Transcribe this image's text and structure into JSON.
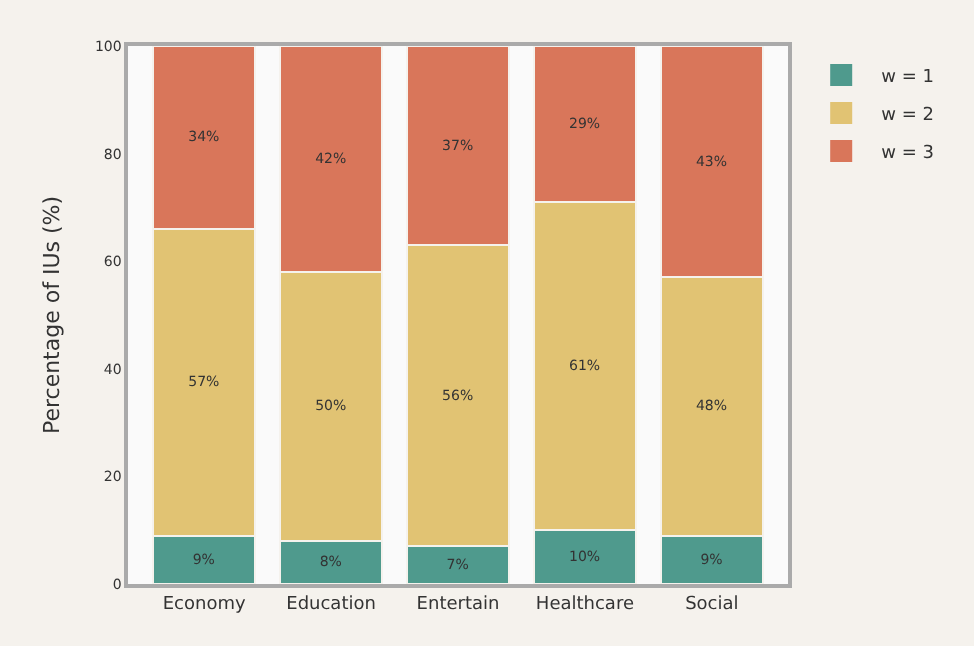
{
  "chart_data": {
    "type": "bar",
    "stacked": true,
    "ylabel": "Percentage of IUs (%)",
    "categories": [
      "Economy",
      "Education",
      "Entertain",
      "Healthcare",
      "Social"
    ],
    "series": [
      {
        "name": "w = 1",
        "color": "#4f9a8d",
        "values": [
          9,
          8,
          7,
          10,
          9
        ],
        "value_labels": [
          "9%",
          "8%",
          "7%",
          "10%",
          "9%"
        ]
      },
      {
        "name": "w = 2",
        "color": "#e1c373",
        "values": [
          57,
          50,
          56,
          61,
          48
        ],
        "value_labels": [
          "57%",
          "50%",
          "56%",
          "61%",
          "48%"
        ]
      },
      {
        "name": "w = 3",
        "color": "#d9765a",
        "values": [
          34,
          42,
          37,
          29,
          43
        ],
        "value_labels": [
          "34%",
          "42%",
          "37%",
          "29%",
          "43%"
        ]
      }
    ],
    "ylim": [
      0,
      100
    ],
    "yticks": [
      0,
      20,
      40,
      60,
      80,
      100
    ],
    "legend": "top right"
  }
}
